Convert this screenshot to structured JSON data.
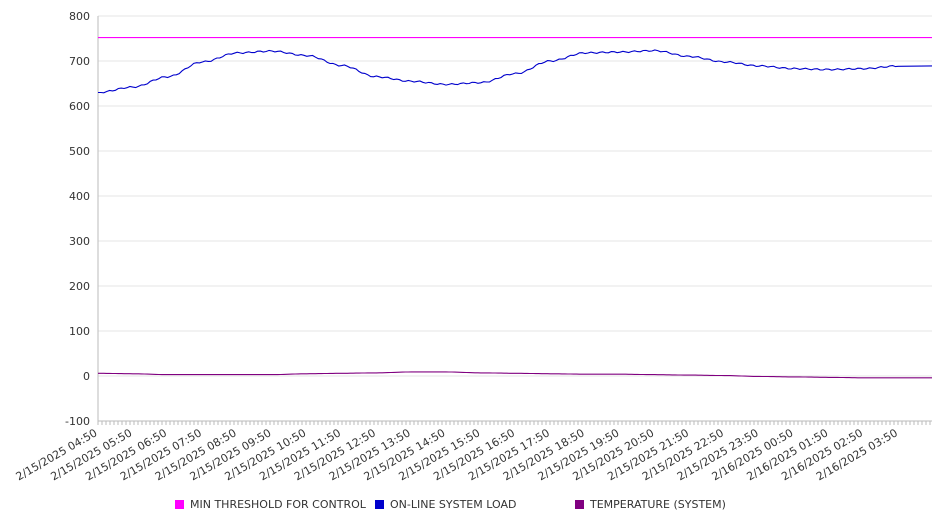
{
  "chart_data": {
    "type": "line",
    "title": "",
    "xlabel": "",
    "ylabel": "",
    "ylim": [
      -100,
      800
    ],
    "y_ticks": [
      "-100",
      "0",
      "100",
      "200",
      "300",
      "400",
      "500",
      "600",
      "700",
      "800"
    ],
    "x_ticks": [
      "2/15/2025 04:50",
      "2/15/2025 05:50",
      "2/15/2025 06:50",
      "2/15/2025 07:50",
      "2/15/2025 08:50",
      "2/15/2025 09:50",
      "2/15/2025 10:50",
      "2/15/2025 11:50",
      "2/15/2025 12:50",
      "2/15/2025 13:50",
      "2/15/2025 14:50",
      "2/15/2025 15:50",
      "2/15/2025 16:50",
      "2/15/2025 17:50",
      "2/15/2025 18:50",
      "2/15/2025 19:50",
      "2/15/2025 20:50",
      "2/15/2025 21:50",
      "2/15/2025 22:50",
      "2/15/2025 23:50",
      "2/16/2025 00:50",
      "2/16/2025 01:50",
      "2/16/2025 02:50",
      "2/16/2025 03:50"
    ],
    "grid": "horizontal",
    "legend_position": "bottom",
    "series": [
      {
        "name": "MIN THRESHOLD FOR CONTROL",
        "color": "#ff00ff",
        "values": [
          752,
          752,
          752,
          752,
          752,
          752,
          752,
          752,
          752,
          752,
          752,
          752,
          752,
          752,
          752,
          752,
          752,
          752,
          752,
          752,
          752,
          752,
          752,
          752
        ]
      },
      {
        "name": "ON-LINE SYSTEM LOAD",
        "color": "#0000cc",
        "values": [
          630,
          642,
          665,
          698,
          718,
          722,
          712,
          690,
          665,
          655,
          648,
          652,
          672,
          700,
          718,
          720,
          723,
          710,
          698,
          689,
          683,
          681,
          683,
          689
        ]
      },
      {
        "name": "TEMPERATURE (SYSTEM)",
        "color": "#800080",
        "values": [
          6,
          5,
          3,
          3,
          3,
          3,
          5,
          6,
          7,
          9,
          9,
          7,
          6,
          5,
          4,
          4,
          3,
          2,
          1,
          -1,
          -2,
          -3,
          -4,
          -4
        ]
      }
    ]
  }
}
